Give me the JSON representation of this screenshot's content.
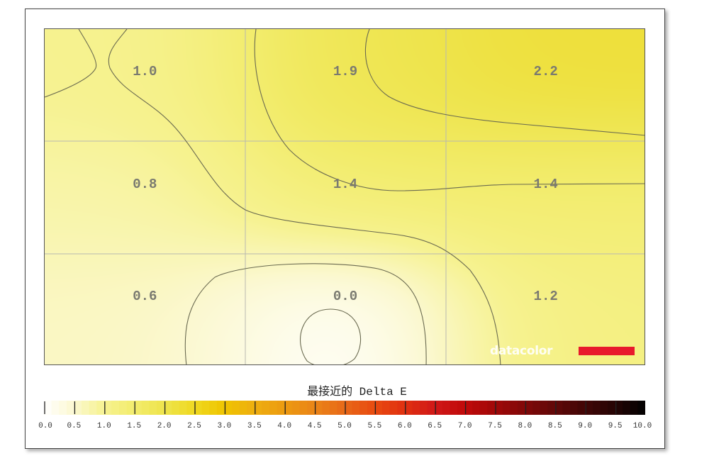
{
  "chart_data": {
    "type": "heatmap",
    "title": "",
    "colorbar_label": "最接近的 Delta E",
    "grid": true,
    "rows": 3,
    "cols": 3,
    "values": [
      [
        1.0,
        1.9,
        2.2
      ],
      [
        0.8,
        1.4,
        1.4
      ],
      [
        0.6,
        0.0,
        1.2
      ]
    ],
    "labels": [
      [
        "1.0",
        "1.9",
        "2.2"
      ],
      [
        "0.8",
        "1.4",
        "1.4"
      ],
      [
        "0.6",
        "0.0",
        "1.2"
      ]
    ],
    "colorbar": {
      "range": [
        0,
        10
      ],
      "ticks": [
        "0.0",
        "0.5",
        "1.0",
        "1.5",
        "2.0",
        "2.5",
        "3.0",
        "3.5",
        "4.0",
        "4.5",
        "5.0",
        "5.5",
        "6.0",
        "6.5",
        "7.0",
        "7.5",
        "8.0",
        "8.5",
        "9.0",
        "9.5",
        "10.0"
      ],
      "stops": [
        "#ffffff",
        "#fbf8d0",
        "#f6f290",
        "#f2ec6c",
        "#eee44c",
        "#efd820",
        "#efc400",
        "#eeae10",
        "#ec9a10",
        "#ea8418",
        "#e86818",
        "#e84a10",
        "#e03010",
        "#d01818",
        "#c00a0a",
        "#a00808",
        "#800808",
        "#600808",
        "#400606",
        "#240404",
        "#000000"
      ]
    }
  },
  "logo": {
    "text": "datacolor",
    "color": "#e8192c"
  }
}
